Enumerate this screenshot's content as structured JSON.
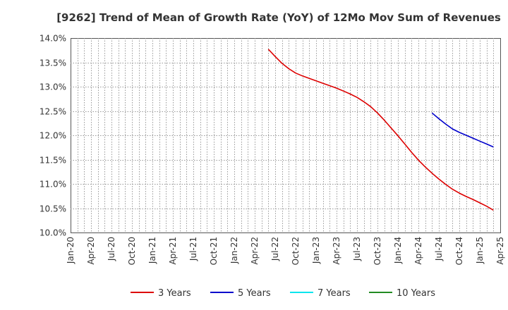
{
  "chart_data": {
    "type": "line",
    "title": "[9262]  Trend of Mean of Growth Rate (YoY) of 12Mo Mov Sum of Revenues",
    "xlabel": "",
    "ylabel": "",
    "ylim": [
      10.0,
      14.0
    ],
    "y_ticks": [
      "10.0%",
      "10.5%",
      "11.0%",
      "11.5%",
      "12.0%",
      "12.5%",
      "13.0%",
      "13.5%",
      "14.0%"
    ],
    "x_ticks": [
      "Jan-20",
      "Apr-20",
      "Jul-20",
      "Oct-20",
      "Jan-21",
      "Apr-21",
      "Jul-21",
      "Oct-21",
      "Jan-22",
      "Apr-22",
      "Jul-22",
      "Oct-22",
      "Jan-23",
      "Apr-23",
      "Jul-23",
      "Oct-23",
      "Jan-24",
      "Apr-24",
      "Jul-24",
      "Oct-24",
      "Jan-25",
      "Apr-25"
    ],
    "grid": true,
    "legend_position": "bottom",
    "series": [
      {
        "name": "3 Years",
        "color": "#dd0000",
        "points": [
          [
            "Jun-22",
            13.77
          ],
          [
            "Jul-22",
            13.62
          ],
          [
            "Aug-22",
            13.48
          ],
          [
            "Sep-22",
            13.37
          ],
          [
            "Oct-22",
            13.28
          ],
          [
            "Nov-22",
            13.22
          ],
          [
            "Dec-22",
            13.17
          ],
          [
            "Jan-23",
            13.12
          ],
          [
            "Feb-23",
            13.07
          ],
          [
            "Mar-23",
            13.02
          ],
          [
            "Apr-23",
            12.97
          ],
          [
            "May-23",
            12.91
          ],
          [
            "Jun-23",
            12.85
          ],
          [
            "Jul-23",
            12.78
          ],
          [
            "Aug-23",
            12.69
          ],
          [
            "Sep-23",
            12.59
          ],
          [
            "Oct-23",
            12.46
          ],
          [
            "Nov-23",
            12.31
          ],
          [
            "Dec-23",
            12.15
          ],
          [
            "Jan-24",
            11.99
          ],
          [
            "Feb-24",
            11.82
          ],
          [
            "Mar-24",
            11.65
          ],
          [
            "Apr-24",
            11.49
          ],
          [
            "May-24",
            11.35
          ],
          [
            "Jun-24",
            11.22
          ],
          [
            "Jul-24",
            11.1
          ],
          [
            "Aug-24",
            10.99
          ],
          [
            "Sep-24",
            10.89
          ],
          [
            "Oct-24",
            10.81
          ],
          [
            "Nov-24",
            10.74
          ],
          [
            "Dec-24",
            10.68
          ],
          [
            "Jan-25",
            10.61
          ],
          [
            "Feb-25",
            10.54
          ],
          [
            "Mar-25",
            10.46
          ]
        ]
      },
      {
        "name": "5 Years",
        "color": "#0000cc",
        "points": [
          [
            "Jun-24",
            12.46
          ],
          [
            "Jul-24",
            12.34
          ],
          [
            "Aug-24",
            12.23
          ],
          [
            "Sep-24",
            12.13
          ],
          [
            "Oct-24",
            12.06
          ],
          [
            "Nov-24",
            12.0
          ],
          [
            "Dec-24",
            11.94
          ],
          [
            "Jan-25",
            11.88
          ],
          [
            "Feb-25",
            11.82
          ],
          [
            "Mar-25",
            11.76
          ]
        ]
      },
      {
        "name": "7 Years",
        "color": "#00e5ee",
        "points": []
      },
      {
        "name": "10 Years",
        "color": "#228b22",
        "points": []
      }
    ]
  }
}
